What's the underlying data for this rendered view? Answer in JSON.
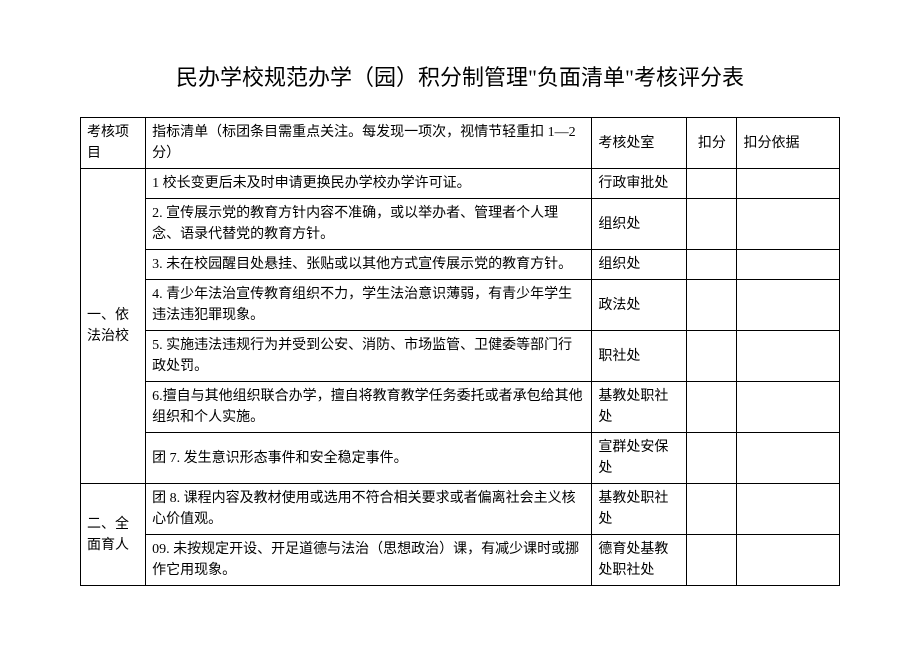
{
  "title": "民办学校规范办学（园）积分制管理\"负面清单\"考核评分表",
  "header": {
    "category": "考核项目",
    "item": "指标清单（标团条目需重点关注。每发现一项次，视情节轻重扣 1—2 分）",
    "dept": "考核处室",
    "score": "扣分",
    "basis": "扣分依据"
  },
  "sections": [
    {
      "category": "一、依法治校",
      "rows": [
        {
          "item": "1 校长变更后未及时申请更换民办学校办学许可证。",
          "dept": "行政审批处"
        },
        {
          "item": "2. 宣传展示党的教育方针内容不准确，或以举办者、管理者个人理念、语录代替党的教育方针。",
          "dept": "组织处"
        },
        {
          "item": "3. 未在校园醒目处悬挂、张贴或以其他方式宣传展示党的教育方针。",
          "dept": "组织处"
        },
        {
          "item": "4. 青少年法治宣传教育组织不力，学生法治意识薄弱，有青少年学生违法违犯罪现象。",
          "dept": "政法处"
        },
        {
          "item": "5. 实施违法违规行为并受到公安、消防、市场监管、卫健委等部门行政处罚。",
          "dept": "职社处"
        },
        {
          "item": "6.擅自与其他组织联合办学，擅自将教育教学任务委托或者承包给其他组织和个人实施。",
          "dept": "基教处职社处"
        },
        {
          "item": "团 7. 发生意识形态事件和安全稳定事件。",
          "dept": "宣群处安保处"
        }
      ]
    },
    {
      "category": "二、全面育人",
      "rows": [
        {
          "item": "团 8. 课程内容及教材使用或选用不符合相关要求或者偏离社会主义核心价值观。",
          "dept": "基教处职社处"
        },
        {
          "item": "09. 未按规定开设、开足道德与法治（思想政治）课，有减少课时或挪作它用现象。",
          "dept": "德育处基教处职社处"
        }
      ]
    }
  ]
}
